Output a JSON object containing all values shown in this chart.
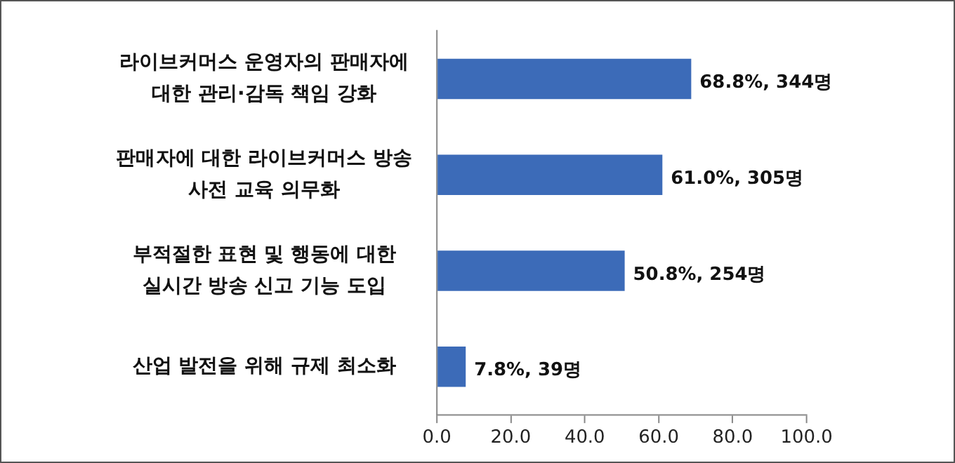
{
  "chart_data": {
    "type": "bar",
    "orientation": "horizontal",
    "categories": [
      "라이브커머스 운영자의 판매자에\n대한 관리·감독 책임 강화",
      "판매자에 대한 라이브커머스 방송\n사전 교육 의무화",
      "부적절한 표현 및 행동에 대한\n실시간 방송 신고 기능 도입",
      "산업 발전을 위해 규제 최소화"
    ],
    "values": [
      68.8,
      61.0,
      50.8,
      7.8
    ],
    "value_labels": [
      "68.8%, 344명",
      "61.0%, 305명",
      "50.8%, 254명",
      "7.8%, 39명"
    ],
    "color": "#3c6bb8",
    "xlim": [
      0,
      100
    ],
    "xticks": [
      {
        "value": 0,
        "label": "0.0"
      },
      {
        "value": 20,
        "label": "20.0"
      },
      {
        "value": 40,
        "label": "40.0"
      },
      {
        "value": 60,
        "label": "60.0"
      },
      {
        "value": 80,
        "label": "80.0"
      },
      {
        "value": 100,
        "label": "100.0"
      }
    ],
    "grid": false,
    "legend": false
  }
}
